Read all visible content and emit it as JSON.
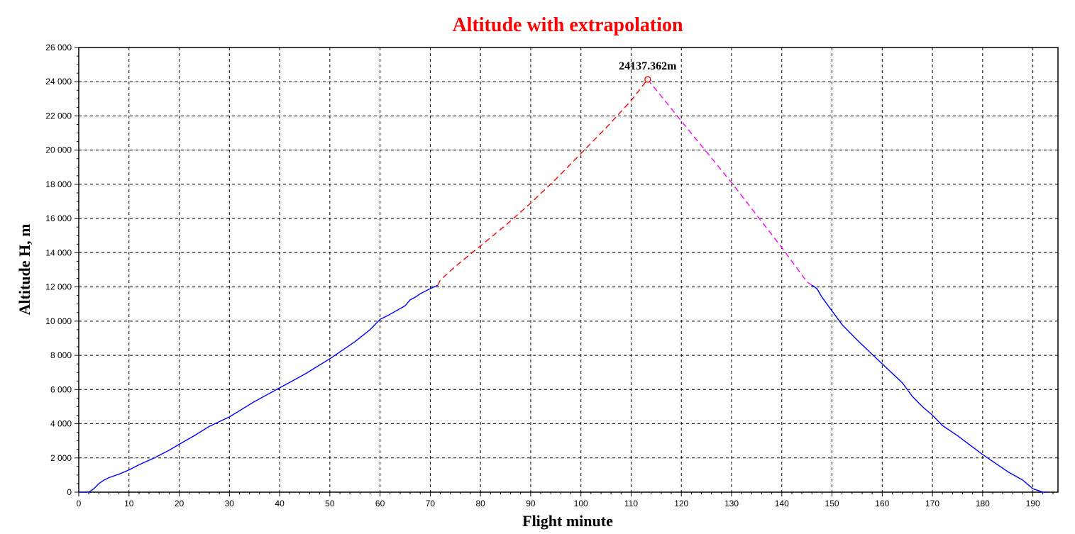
{
  "chart_data": {
    "type": "line",
    "title": "Altitude with extrapolation",
    "xlabel": "Flight minute",
    "ylabel": "Altitude H, m",
    "xlim": [
      0,
      195
    ],
    "ylim": [
      0,
      26000
    ],
    "x_ticks": [
      0,
      10,
      20,
      30,
      40,
      50,
      60,
      70,
      80,
      90,
      100,
      110,
      120,
      130,
      140,
      150,
      160,
      170,
      180,
      190
    ],
    "y_ticks": [
      0,
      2000,
      4000,
      6000,
      8000,
      10000,
      12000,
      14000,
      16000,
      18000,
      20000,
      22000,
      24000,
      26000
    ],
    "y_tick_labels": [
      "0",
      "2 000",
      "4 000",
      "6 000",
      "8 000",
      "10 000",
      "12 000",
      "14 000",
      "16 000",
      "18 000",
      "20 000",
      "22 000",
      "24 000",
      "26 000"
    ],
    "grid": true,
    "colors": {
      "title": "#ff0000",
      "measured": "#0000ff",
      "ascent_extrapolation": "#ff0000",
      "descent_extrapolation": "#ff00ff",
      "grid": "#000000"
    },
    "series": [
      {
        "style": "solid",
        "color": "#0000ff",
        "x": [
          0,
          2,
          3,
          4,
          5,
          6,
          8,
          10,
          12,
          15,
          18,
          20,
          23,
          26,
          30,
          35,
          40,
          45,
          50,
          55,
          58,
          60,
          62,
          65,
          66,
          67,
          68,
          70,
          71.5
        ],
        "y": [
          0,
          0,
          200,
          500,
          700,
          850,
          1050,
          1300,
          1600,
          2000,
          2450,
          2800,
          3300,
          3850,
          4400,
          5300,
          6100,
          6900,
          7800,
          8800,
          9500,
          10100,
          10400,
          10900,
          11250,
          11400,
          11600,
          11900,
          12100
        ]
      },
      {
        "style": "dashed",
        "color": "#ff0000",
        "x": [
          71.5,
          72,
          75,
          80,
          85,
          90,
          95,
          100,
          105,
          110,
          113.3
        ],
        "y": [
          12100,
          12400,
          13200,
          14400,
          15600,
          16900,
          18300,
          19800,
          21300,
          22900,
          24137.362
        ]
      },
      {
        "style": "dashed",
        "color": "#ff00ff",
        "x": [
          113.3,
          120,
          130,
          140,
          145,
          146
        ],
        "y": [
          24137.362,
          21700,
          18100,
          14300,
          12300,
          12100
        ]
      },
      {
        "style": "solid",
        "color": "#0000ff",
        "x": [
          146,
          147,
          148,
          150,
          152,
          155,
          160,
          164,
          166,
          168,
          170,
          172,
          175,
          180,
          185,
          188,
          190,
          191,
          192,
          193
        ],
        "y": [
          12100,
          11900,
          11400,
          10600,
          9800,
          8900,
          7500,
          6400,
          5600,
          5000,
          4500,
          3900,
          3300,
          2200,
          1200,
          700,
          200,
          100,
          0,
          0
        ]
      }
    ],
    "annotations": [
      {
        "text": "24137.362m",
        "x": 113.3,
        "y": 24137.362,
        "color": "#ff0000"
      }
    ]
  }
}
